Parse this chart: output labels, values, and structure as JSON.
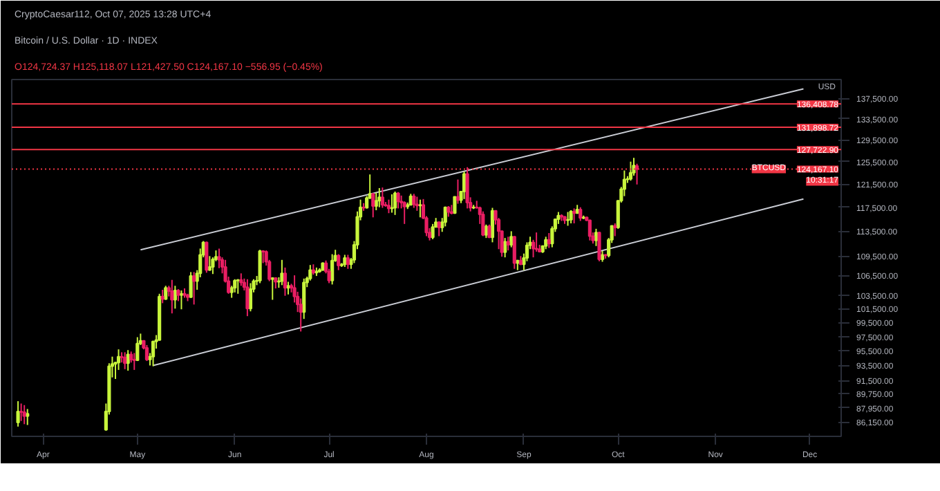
{
  "chart_data": {
    "type": "candlestick",
    "title": "Bitcoin / U.S. Dollar · 1D · INDEX",
    "subtitle": "O124,724.37 H125,118.07 L121,427.50 C124,167.10 −556.95 (−0.45%)",
    "annotations": [
      "CryptoCaesar112, Oct 07, 2025 13:28 UTC+4",
      "USD",
      "BTCUSD",
      "10:31:17"
    ],
    "xlim": [
      "2025-03-22",
      "2025-12-11"
    ],
    "xticks": [
      {
        "value": "2025-04-01",
        "label": "Apr"
      },
      {
        "value": "2025-05-01",
        "label": "May"
      },
      {
        "value": "2025-06-01",
        "label": "Jun"
      },
      {
        "value": "2025-07-01",
        "label": "Jul"
      },
      {
        "value": "2025-08-01",
        "label": "Aug"
      },
      {
        "value": "2025-09-01",
        "label": "Sep"
      },
      {
        "value": "2025-10-01",
        "label": "Oct"
      },
      {
        "value": "2025-11-01",
        "label": "Nov"
      },
      {
        "value": "2025-12-01",
        "label": "Dec"
      }
    ],
    "log": true,
    "ylim": [
      84400,
      141300
    ],
    "yticks": [
      {
        "value": 86150,
        "label": "86,150.00"
      },
      {
        "value": 87950,
        "label": "87,950.00"
      },
      {
        "value": 89750,
        "label": "89,750.00"
      },
      {
        "value": 91500,
        "label": "91,500.00"
      },
      {
        "value": 93500,
        "label": "93,500.00"
      },
      {
        "value": 95500,
        "label": "95,500.00"
      },
      {
        "value": 97500,
        "label": "97,500.00"
      },
      {
        "value": 99500,
        "label": "99,500.00"
      },
      {
        "value": 101500,
        "label": "101,500.00"
      },
      {
        "value": 103500,
        "label": "103,500.00"
      },
      {
        "value": 106500,
        "label": "106,500.00"
      },
      {
        "value": 109500,
        "label": "109,500.00"
      },
      {
        "value": 113500,
        "label": "113,500.00"
      },
      {
        "value": 117500,
        "label": "117,500.00"
      },
      {
        "value": 121500,
        "label": "121,500.00"
      },
      {
        "value": 125500,
        "label": "125,500.00"
      },
      {
        "value": 129500,
        "label": "129,500.00"
      },
      {
        "value": 133500,
        "label": "133,500.00"
      },
      {
        "value": 137500,
        "label": "137,500.00"
      }
    ],
    "grid": false,
    "ref_lines": [
      {
        "axis": "y",
        "value": 136408.78,
        "label": "136,408.78",
        "color": "#f23645",
        "line_style": "solid"
      },
      {
        "axis": "y",
        "value": 131898.72,
        "label": "131,898.72",
        "color": "#f23645",
        "line_style": "solid"
      },
      {
        "axis": "y",
        "value": 127722.9,
        "label": "127,722.90",
        "color": "#f23645",
        "line_style": "solid"
      },
      {
        "axis": "y",
        "value": 124167.1,
        "label": "124,167.10",
        "color": "#f23645",
        "line_style": "dotted"
      }
    ],
    "series": [
      {
        "type": "line",
        "color": "#c9ccd4",
        "x": [
          "2025-05-02",
          "2025-11-29"
        ],
        "values": [
          110500,
          139400
        ]
      },
      {
        "type": "line",
        "color": "#c9ccd4",
        "x": [
          "2025-05-06",
          "2025-11-29"
        ],
        "values": [
          93500,
          118900
        ]
      },
      {
        "color": "#c8f53c",
        "x": [
          "2025-03-24",
          "2025-03-27",
          "2025-04-21",
          "2025-04-22",
          "2025-04-23",
          "2025-04-24",
          "2025-04-25",
          "2025-04-28",
          "2025-05-01",
          "2025-05-02",
          "2025-05-05",
          "2025-05-06",
          "2025-05-07",
          "2025-05-08",
          "2025-05-10",
          "2025-05-13",
          "2025-05-15",
          "2025-05-18",
          "2025-05-20",
          "2025-05-21",
          "2025-05-22",
          "2025-05-24",
          "2025-05-25",
          "2025-05-26",
          "2025-05-31",
          "2025-06-01",
          "2025-06-02",
          "2025-06-06",
          "2025-06-07",
          "2025-06-08",
          "2025-06-09",
          "2025-06-13",
          "2025-06-15",
          "2025-06-16",
          "2025-06-18",
          "2025-06-23",
          "2025-06-24",
          "2025-06-25",
          "2025-06-27",
          "2025-06-28",
          "2025-06-29",
          "2025-07-02",
          "2025-07-03",
          "2025-07-05",
          "2025-07-06",
          "2025-07-08",
          "2025-07-09",
          "2025-07-10",
          "2025-07-11",
          "2025-07-13",
          "2025-07-14",
          "2025-07-16",
          "2025-07-17",
          "2025-07-21",
          "2025-07-22",
          "2025-07-26",
          "2025-07-27",
          "2025-07-30",
          "2025-08-03",
          "2025-08-04",
          "2025-08-06",
          "2025-08-07",
          "2025-08-10",
          "2025-08-12",
          "2025-08-13",
          "2025-08-16",
          "2025-08-20",
          "2025-08-22",
          "2025-08-26",
          "2025-08-28",
          "2025-08-30",
          "2025-09-01",
          "2025-09-02",
          "2025-09-03",
          "2025-09-07",
          "2025-09-08",
          "2025-09-10",
          "2025-09-11",
          "2025-09-12",
          "2025-09-15",
          "2025-09-16",
          "2025-09-18",
          "2025-09-20",
          "2025-09-24",
          "2025-09-26",
          "2025-09-28",
          "2025-09-29",
          "2025-10-01",
          "2025-10-02",
          "2025-10-03",
          "2025-10-04",
          "2025-10-05",
          "2025-10-06"
        ],
        "ohlc": [
          [
            86100,
            88800,
            85600,
            87500
          ],
          [
            86900,
            87800,
            85800,
            87200
          ],
          [
            85200,
            88500,
            85100,
            87500
          ],
          [
            87500,
            93800,
            87100,
            93400
          ],
          [
            93400,
            94700,
            91900,
            93700
          ],
          [
            93700,
            94000,
            91700,
            93900
          ],
          [
            93900,
            95700,
            92900,
            94700
          ],
          [
            93800,
            95600,
            92800,
            95000
          ],
          [
            94200,
            97400,
            94100,
            96500
          ],
          [
            96500,
            97900,
            96300,
            96900
          ],
          [
            94300,
            95200,
            93500,
            94700
          ],
          [
            94700,
            96900,
            93400,
            96800
          ],
          [
            96800,
            97700,
            95800,
            97000
          ],
          [
            97000,
            103700,
            96900,
            103300
          ],
          [
            102900,
            104900,
            102800,
            104600
          ],
          [
            102800,
            104900,
            101500,
            104200
          ],
          [
            103500,
            104200,
            101400,
            103700
          ],
          [
            103200,
            107000,
            103100,
            106400
          ],
          [
            105600,
            107300,
            104300,
            106800
          ],
          [
            106800,
            110700,
            106200,
            109700
          ],
          [
            109700,
            111900,
            109300,
            111700
          ],
          [
            107300,
            109500,
            107200,
            107800
          ],
          [
            107800,
            109300,
            106700,
            109000
          ],
          [
            109000,
            110400,
            108700,
            109400
          ],
          [
            103900,
            104900,
            103100,
            104600
          ],
          [
            104600,
            105900,
            103900,
            105700
          ],
          [
            105700,
            105900,
            103700,
            105800
          ],
          [
            101500,
            105300,
            101100,
            104400
          ],
          [
            104400,
            105900,
            103900,
            105600
          ],
          [
            105600,
            106400,
            105000,
            105700
          ],
          [
            105700,
            110500,
            105300,
            110300
          ],
          [
            105900,
            106200,
            102800,
            106100
          ],
          [
            105500,
            106200,
            104600,
            105600
          ],
          [
            105600,
            108900,
            105000,
            106800
          ],
          [
            104600,
            105500,
            103600,
            104900
          ],
          [
            101000,
            106000,
            100000,
            105400
          ],
          [
            105400,
            106300,
            104700,
            106000
          ],
          [
            106000,
            108100,
            105700,
            107300
          ],
          [
            106900,
            107700,
            106400,
            107100
          ],
          [
            107100,
            107600,
            106900,
            107300
          ],
          [
            107300,
            108500,
            107200,
            108400
          ],
          [
            105700,
            109800,
            105100,
            108800
          ],
          [
            108800,
            110500,
            108600,
            109600
          ],
          [
            108000,
            108400,
            107800,
            108200
          ],
          [
            108200,
            109700,
            107800,
            109200
          ],
          [
            108200,
            109200,
            107500,
            108900
          ],
          [
            108900,
            111900,
            108400,
            111300
          ],
          [
            111300,
            116800,
            110600,
            115900
          ],
          [
            115900,
            118800,
            115300,
            117500
          ],
          [
            117400,
            119400,
            117300,
            119100
          ],
          [
            119100,
            123200,
            118900,
            119800
          ],
          [
            117700,
            120000,
            117000,
            118600
          ],
          [
            118600,
            120800,
            117500,
            119200
          ],
          [
            117300,
            119700,
            116600,
            117400
          ],
          [
            117400,
            120200,
            116200,
            119900
          ],
          [
            117600,
            118300,
            117200,
            117900
          ],
          [
            117900,
            119800,
            117800,
            119400
          ],
          [
            117800,
            118800,
            115800,
            117900
          ],
          [
            112500,
            114700,
            112200,
            114200
          ],
          [
            114200,
            115700,
            114100,
            115000
          ],
          [
            114100,
            115700,
            113400,
            115000
          ],
          [
            115000,
            117600,
            114300,
            117500
          ],
          [
            116500,
            119300,
            116400,
            119300
          ],
          [
            118700,
            120300,
            118200,
            120200
          ],
          [
            120200,
            123700,
            118900,
            123300
          ],
          [
            117400,
            117900,
            117200,
            117500
          ],
          [
            112900,
            114600,
            112400,
            114300
          ],
          [
            112500,
            117400,
            111700,
            116900
          ],
          [
            110100,
            112400,
            109300,
            111800
          ],
          [
            111300,
            113500,
            110900,
            112600
          ],
          [
            108400,
            108900,
            107300,
            108800
          ],
          [
            108200,
            109900,
            107300,
            109200
          ],
          [
            109200,
            111700,
            108700,
            111200
          ],
          [
            111200,
            112600,
            110600,
            111700
          ],
          [
            110200,
            111200,
            110000,
            111100
          ],
          [
            111100,
            112600,
            110600,
            112100
          ],
          [
            111500,
            114300,
            110900,
            113900
          ],
          [
            113900,
            115500,
            113400,
            115500
          ],
          [
            115500,
            116700,
            114700,
            116100
          ],
          [
            115300,
            116700,
            114400,
            115400
          ],
          [
            115400,
            117000,
            114800,
            116800
          ],
          [
            116500,
            117900,
            116400,
            117100
          ],
          [
            115700,
            116100,
            115500,
            115800
          ],
          [
            112000,
            113900,
            111100,
            113300
          ],
          [
            109000,
            110300,
            108600,
            109700
          ],
          [
            109600,
            112400,
            109300,
            112100
          ],
          [
            112100,
            114400,
            111600,
            114400
          ],
          [
            114100,
            118700,
            113900,
            118600
          ],
          [
            118600,
            121000,
            118300,
            120600
          ],
          [
            120600,
            123900,
            119400,
            122300
          ],
          [
            122300,
            122900,
            121700,
            122400
          ],
          [
            122400,
            125500,
            122100,
            123500
          ],
          [
            123500,
            126200,
            123000,
            124800
          ]
        ]
      },
      {
        "color": "#e91e63",
        "x": [
          "2025-03-25",
          "2025-03-26",
          "2025-04-26",
          "2025-04-27",
          "2025-04-29",
          "2025-04-30",
          "2025-05-03",
          "2025-05-04",
          "2025-05-09",
          "2025-05-11",
          "2025-05-12",
          "2025-05-14",
          "2025-05-16",
          "2025-05-17",
          "2025-05-19",
          "2025-05-23",
          "2025-05-27",
          "2025-05-28",
          "2025-05-29",
          "2025-05-30",
          "2025-06-03",
          "2025-06-04",
          "2025-06-05",
          "2025-06-10",
          "2025-06-11",
          "2025-06-12",
          "2025-06-14",
          "2025-06-17",
          "2025-06-19",
          "2025-06-20",
          "2025-06-21",
          "2025-06-22",
          "2025-06-26",
          "2025-06-30",
          "2025-07-01",
          "2025-07-04",
          "2025-07-07",
          "2025-07-12",
          "2025-07-15",
          "2025-07-18",
          "2025-07-19",
          "2025-07-20",
          "2025-07-23",
          "2025-07-24",
          "2025-07-25",
          "2025-07-28",
          "2025-07-29",
          "2025-07-31",
          "2025-08-01",
          "2025-08-02",
          "2025-08-05",
          "2025-08-08",
          "2025-08-09",
          "2025-08-11",
          "2025-08-14",
          "2025-08-15",
          "2025-08-17",
          "2025-08-18",
          "2025-08-19",
          "2025-08-21",
          "2025-08-23",
          "2025-08-24",
          "2025-08-25",
          "2025-08-27",
          "2025-08-29",
          "2025-08-31",
          "2025-09-04",
          "2025-09-05",
          "2025-09-06",
          "2025-09-09",
          "2025-09-13",
          "2025-09-14",
          "2025-09-17",
          "2025-09-19",
          "2025-09-21",
          "2025-09-22",
          "2025-09-23",
          "2025-09-25",
          "2025-09-27",
          "2025-09-30",
          "2025-10-07"
        ],
        "ohlc": [
          [
            87500,
            88500,
            86300,
            87400
          ],
          [
            87400,
            88300,
            85900,
            86900
          ],
          [
            94700,
            95300,
            93900,
            94600
          ],
          [
            94600,
            95300,
            93000,
            93800
          ],
          [
            95000,
            95400,
            93900,
            94300
          ],
          [
            94300,
            95200,
            92900,
            94200
          ],
          [
            96900,
            96900,
            95700,
            95900
          ],
          [
            95900,
            96300,
            94100,
            94300
          ],
          [
            103300,
            104300,
            102300,
            102900
          ],
          [
            104600,
            104900,
            103300,
            104100
          ],
          [
            104100,
            105800,
            100800,
            102800
          ],
          [
            104200,
            104400,
            102600,
            103500
          ],
          [
            103700,
            104500,
            103100,
            103500
          ],
          [
            103500,
            103700,
            102600,
            103200
          ],
          [
            106400,
            107000,
            102100,
            105600
          ],
          [
            111700,
            111800,
            106900,
            107300
          ],
          [
            109400,
            110700,
            107600,
            108900
          ],
          [
            108900,
            109300,
            106800,
            107800
          ],
          [
            107800,
            108900,
            105400,
            105600
          ],
          [
            105600,
            106300,
            103700,
            103900
          ],
          [
            105800,
            106800,
            104900,
            105400
          ],
          [
            105400,
            106000,
            104200,
            104700
          ],
          [
            104700,
            105900,
            100400,
            101500
          ],
          [
            110300,
            110400,
            108400,
            110200
          ],
          [
            110200,
            110400,
            108000,
            108600
          ],
          [
            108600,
            108900,
            105600,
            105900
          ],
          [
            106100,
            106200,
            104500,
            105500
          ],
          [
            106800,
            107700,
            103400,
            104600
          ],
          [
            104900,
            105200,
            103900,
            104600
          ],
          [
            104600,
            106500,
            102400,
            103300
          ],
          [
            103300,
            104000,
            101000,
            102100
          ],
          [
            102100,
            103000,
            98200,
            101000
          ],
          [
            107300,
            108200,
            106600,
            106900
          ],
          [
            108400,
            108800,
            106800,
            107100
          ],
          [
            107100,
            107500,
            105300,
            105700
          ],
          [
            109600,
            109800,
            107300,
            108000
          ],
          [
            109200,
            109700,
            107500,
            108200
          ],
          [
            117500,
            118200,
            116900,
            117400
          ],
          [
            119800,
            119900,
            115800,
            117700
          ],
          [
            119200,
            120900,
            117400,
            117900
          ],
          [
            117900,
            118400,
            117600,
            117800
          ],
          [
            117800,
            118800,
            116500,
            117300
          ],
          [
            119900,
            120100,
            117300,
            118500
          ],
          [
            118500,
            119500,
            117300,
            118300
          ],
          [
            118300,
            118500,
            114700,
            117600
          ],
          [
            119400,
            119800,
            117400,
            118000
          ],
          [
            118000,
            119300,
            116900,
            117800
          ],
          [
            117900,
            118900,
            115500,
            115700
          ],
          [
            115700,
            116000,
            112700,
            113300
          ],
          [
            113300,
            114000,
            112000,
            112500
          ],
          [
            115000,
            115100,
            112700,
            114100
          ],
          [
            117500,
            117700,
            115900,
            116700
          ],
          [
            116700,
            117900,
            116300,
            116500
          ],
          [
            119300,
            122300,
            118100,
            118700
          ],
          [
            123300,
            124500,
            117300,
            118300
          ],
          [
            118300,
            119200,
            116800,
            117400
          ],
          [
            117500,
            118600,
            117300,
            117400
          ],
          [
            117400,
            117600,
            114700,
            116300
          ],
          [
            116300,
            116800,
            112700,
            112900
          ],
          [
            114300,
            114600,
            112400,
            112500
          ],
          [
            116900,
            117000,
            114600,
            115400
          ],
          [
            115400,
            115700,
            110600,
            113500
          ],
          [
            113500,
            113600,
            109400,
            110100
          ],
          [
            111800,
            112600,
            110400,
            111300
          ],
          [
            112600,
            112700,
            107500,
            108400
          ],
          [
            108800,
            109500,
            108100,
            108200
          ],
          [
            111700,
            112100,
            109300,
            110700
          ],
          [
            110700,
            113300,
            110200,
            110600
          ],
          [
            110600,
            111300,
            110100,
            110200
          ],
          [
            112100,
            113200,
            110800,
            111500
          ],
          [
            116100,
            116300,
            115200,
            115900
          ],
          [
            115900,
            116000,
            114700,
            115300
          ],
          [
            116800,
            117300,
            114800,
            116500
          ],
          [
            117100,
            117500,
            115200,
            115700
          ],
          [
            115800,
            115900,
            115200,
            115300
          ],
          [
            115300,
            115400,
            112000,
            112700
          ],
          [
            112700,
            113300,
            111500,
            112000
          ],
          [
            113300,
            113400,
            108700,
            109000
          ],
          [
            109700,
            109800,
            109100,
            109600
          ],
          [
            114400,
            114800,
            112700,
            114100
          ],
          [
            124724.37,
            125118.07,
            121427.5,
            124167.1
          ]
        ]
      }
    ]
  }
}
